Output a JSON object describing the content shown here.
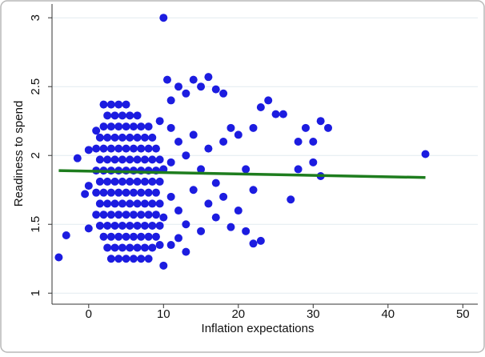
{
  "chart_data": {
    "type": "scatter",
    "x_label": "Inflation expectations",
    "y_label": "Readiness to spend",
    "xlim": [
      -4.9,
      52
    ],
    "xticks": [
      0,
      10,
      20,
      30,
      40,
      50
    ],
    "ylim": [
      0.92,
      3.1
    ],
    "yticks": [
      1,
      1.5,
      2,
      2.5,
      3
    ],
    "grid": true,
    "color": "#1c1ce0",
    "x": [
      3,
      4,
      5,
      6,
      7,
      8,
      2.5,
      3.5,
      4.5,
      5.5,
      6.5,
      7.5,
      8.5,
      2,
      3,
      4,
      5,
      6,
      7,
      8,
      9,
      1.5,
      2.5,
      3.5,
      4.5,
      5.5,
      6.5,
      7.5,
      8.5,
      9.5,
      1,
      2,
      3,
      4,
      5,
      6,
      7,
      8,
      9,
      1.5,
      2.5,
      3.5,
      4.5,
      5.5,
      6.5,
      7.5,
      8.5,
      9.5,
      1,
      2,
      3,
      4,
      5,
      6,
      7,
      8,
      9,
      1.5,
      2.5,
      3.5,
      4.5,
      5.5,
      6.5,
      7.5,
      8.5,
      9.5,
      1,
      2,
      3,
      4,
      5,
      6,
      7,
      8,
      9,
      1.5,
      2.5,
      3.5,
      4.5,
      5.5,
      6.5,
      7.5,
      8.5,
      9.5,
      1,
      2,
      3,
      4,
      5,
      6,
      7,
      8,
      9,
      1.5,
      2.5,
      3.5,
      4.5,
      5.5,
      6.5,
      7.5,
      8.5,
      2,
      3,
      4,
      5,
      6,
      7,
      8,
      2.5,
      3.5,
      4.5,
      5.5,
      6.5,
      2,
      3,
      4,
      5,
      -4,
      -3,
      -1.5,
      0,
      0,
      0,
      1,
      -0.5,
      10,
      10.5,
      11,
      12,
      13,
      14,
      15,
      16,
      17,
      18,
      11,
      12,
      13,
      14,
      15,
      16,
      17,
      18,
      19,
      20,
      11,
      12,
      13,
      14,
      15,
      16,
      17,
      18,
      19,
      20,
      11,
      12,
      13,
      10,
      21,
      22,
      23,
      24,
      25,
      22,
      23,
      22,
      21,
      26,
      27,
      28,
      29,
      30,
      31,
      32,
      31,
      30,
      28,
      45,
      10,
      11,
      10,
      9.5,
      9.5
    ],
    "values": [
      1.25,
      1.25,
      1.25,
      1.25,
      1.25,
      1.25,
      1.33,
      1.33,
      1.33,
      1.33,
      1.33,
      1.33,
      1.33,
      1.41,
      1.41,
      1.41,
      1.41,
      1.41,
      1.41,
      1.41,
      1.41,
      1.49,
      1.49,
      1.49,
      1.49,
      1.49,
      1.49,
      1.49,
      1.49,
      1.49,
      1.57,
      1.57,
      1.57,
      1.57,
      1.57,
      1.57,
      1.57,
      1.57,
      1.57,
      1.65,
      1.65,
      1.65,
      1.65,
      1.65,
      1.65,
      1.65,
      1.65,
      1.65,
      1.73,
      1.73,
      1.73,
      1.73,
      1.73,
      1.73,
      1.73,
      1.73,
      1.73,
      1.81,
      1.81,
      1.81,
      1.81,
      1.81,
      1.81,
      1.81,
      1.81,
      1.81,
      1.89,
      1.89,
      1.89,
      1.89,
      1.89,
      1.89,
      1.89,
      1.89,
      1.89,
      1.97,
      1.97,
      1.97,
      1.97,
      1.97,
      1.97,
      1.97,
      1.97,
      1.97,
      2.05,
      2.05,
      2.05,
      2.05,
      2.05,
      2.05,
      2.05,
      2.05,
      2.05,
      2.13,
      2.13,
      2.13,
      2.13,
      2.13,
      2.13,
      2.13,
      2.13,
      2.21,
      2.21,
      2.21,
      2.21,
      2.21,
      2.21,
      2.21,
      2.29,
      2.29,
      2.29,
      2.29,
      2.29,
      2.37,
      2.37,
      2.37,
      2.37,
      1.26,
      1.42,
      1.98,
      2.04,
      1.78,
      1.47,
      2.18,
      1.72,
      3.0,
      2.55,
      2.4,
      2.5,
      2.45,
      2.55,
      2.5,
      2.57,
      2.48,
      2.45,
      2.2,
      2.1,
      2.0,
      2.15,
      1.9,
      2.05,
      1.8,
      2.1,
      2.2,
      2.15,
      1.7,
      1.6,
      1.5,
      1.75,
      1.45,
      1.65,
      1.55,
      1.7,
      1.48,
      1.6,
      1.35,
      1.4,
      1.3,
      1.2,
      1.9,
      2.2,
      2.35,
      2.4,
      2.3,
      1.75,
      1.38,
      1.36,
      1.45,
      2.3,
      1.68,
      2.1,
      2.2,
      1.95,
      2.25,
      2.2,
      1.85,
      2.1,
      1.9,
      2.01,
      1.9,
      1.95,
      1.55,
      2.25,
      1.35
    ],
    "fit": {
      "color": "#1e7d1e",
      "x": [
        -4,
        45
      ],
      "values": [
        1.89,
        1.84
      ]
    }
  }
}
